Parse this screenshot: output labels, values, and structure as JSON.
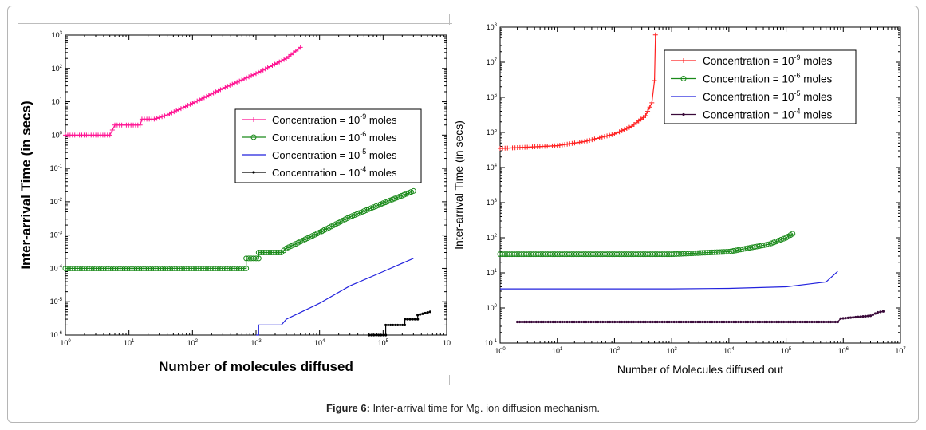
{
  "caption": {
    "label": "Figure 6:",
    "text": "Inter-arrival time for Mg. ion diffusion mechanism."
  },
  "chart_data": [
    {
      "type": "line",
      "xlabel": "Number of molecules diffused",
      "ylabel": "Inter-arrival Time (in secs)",
      "xscale": "log",
      "yscale": "log",
      "xlim": [
        1,
        1000000
      ],
      "ylim": [
        1e-06,
        1000
      ],
      "x_ticks": [
        {
          "base": "10",
          "exp": "0"
        },
        {
          "base": "10",
          "exp": "1"
        },
        {
          "base": "10",
          "exp": "2"
        },
        {
          "base": "10",
          "exp": "3"
        },
        {
          "base": "10",
          "exp": "4"
        },
        {
          "base": "10",
          "exp": "5"
        },
        {
          "base": "10",
          "exp": ""
        }
      ],
      "y_ticks": [
        {
          "base": "10",
          "exp": "-6"
        },
        {
          "base": "10",
          "exp": "-5"
        },
        {
          "base": "10",
          "exp": "-4"
        },
        {
          "base": "10",
          "exp": "-3"
        },
        {
          "base": "10",
          "exp": "-2"
        },
        {
          "base": "10",
          "exp": "-1"
        },
        {
          "base": "10",
          "exp": "0"
        },
        {
          "base": "10",
          "exp": "1"
        },
        {
          "base": "10",
          "exp": "2"
        },
        {
          "base": "10",
          "exp": "3"
        }
      ],
      "legend_position": "right",
      "legend": [
        {
          "prefix": "Concentration = 10",
          "exp": "-9",
          "suffix": "  moles",
          "color": "#ff1493",
          "marker": "plus"
        },
        {
          "prefix": "Concentration = 10",
          "exp": "-6",
          "suffix": "  moles",
          "color": "#1a8a1a",
          "marker": "circle"
        },
        {
          "prefix": "Concentration = 10",
          "exp": "-5",
          "suffix": "  moles",
          "color": "#2222dd",
          "marker": "none"
        },
        {
          "prefix": "Concentration = 10",
          "exp": "-4",
          "suffix": "  moles",
          "color": "#000000",
          "marker": "dot"
        }
      ],
      "series": [
        {
          "name": "Concentration = 10^-9 moles",
          "color": "#ff1493",
          "marker": "plus",
          "points": [
            [
              1,
              1
            ],
            [
              5,
              1
            ],
            [
              6,
              2
            ],
            [
              15,
              2
            ],
            [
              16,
              3
            ],
            [
              25,
              3
            ],
            [
              40,
              4
            ],
            [
              100,
              9
            ],
            [
              300,
              25
            ],
            [
              1000,
              70
            ],
            [
              3000,
              200
            ],
            [
              5000,
              430
            ]
          ]
        },
        {
          "name": "Concentration = 10^-6 moles",
          "color": "#1a8a1a",
          "marker": "circle",
          "points": [
            [
              1,
              0.0001
            ],
            [
              700,
              0.0001
            ],
            [
              700,
              0.0002
            ],
            [
              1100,
              0.0002
            ],
            [
              1100,
              0.0003
            ],
            [
              2500,
              0.0003
            ],
            [
              3000,
              0.0004
            ],
            [
              10000,
              0.0012
            ],
            [
              30000,
              0.0035
            ],
            [
              100000,
              0.009
            ],
            [
              300000,
              0.021
            ]
          ]
        },
        {
          "name": "Concentration = 10^-5 moles",
          "color": "#2222dd",
          "marker": "none",
          "points": [
            [
              1000,
              1e-06
            ],
            [
              1100,
              1e-06
            ],
            [
              1100,
              2e-06
            ],
            [
              2500,
              2e-06
            ],
            [
              3000,
              3e-06
            ],
            [
              10000,
              9e-06
            ],
            [
              30000,
              3e-05
            ],
            [
              100000,
              8e-05
            ],
            [
              300000,
              0.0002
            ]
          ]
        },
        {
          "name": "Concentration = 10^-4 moles",
          "color": "#000000",
          "marker": "dot",
          "points": [
            [
              60000,
              1e-06
            ],
            [
              110000,
              1e-06
            ],
            [
              110000,
              2e-06
            ],
            [
              220000,
              2e-06
            ],
            [
              220000,
              3e-06
            ],
            [
              350000,
              3e-06
            ],
            [
              350000,
              4e-06
            ],
            [
              550000,
              5e-06
            ]
          ]
        }
      ]
    },
    {
      "type": "line",
      "xlabel": "Number of Molecules diffused out",
      "ylabel": "Inter-arrival Time (in secs)",
      "xscale": "log",
      "yscale": "log",
      "xlim": [
        1,
        10000000
      ],
      "ylim": [
        0.1,
        100000000
      ],
      "x_ticks": [
        {
          "base": "10",
          "exp": "0"
        },
        {
          "base": "10",
          "exp": "1"
        },
        {
          "base": "10",
          "exp": "2"
        },
        {
          "base": "10",
          "exp": "3"
        },
        {
          "base": "10",
          "exp": "4"
        },
        {
          "base": "10",
          "exp": "5"
        },
        {
          "base": "10",
          "exp": "6"
        },
        {
          "base": "10",
          "exp": "7"
        }
      ],
      "y_ticks": [
        {
          "base": "10",
          "exp": "-1"
        },
        {
          "base": "10",
          "exp": "0"
        },
        {
          "base": "10",
          "exp": "1"
        },
        {
          "base": "10",
          "exp": "2"
        },
        {
          "base": "10",
          "exp": "3"
        },
        {
          "base": "10",
          "exp": "4"
        },
        {
          "base": "10",
          "exp": "5"
        },
        {
          "base": "10",
          "exp": "6"
        },
        {
          "base": "10",
          "exp": "7"
        },
        {
          "base": "10",
          "exp": "8"
        }
      ],
      "legend_position": "top-right",
      "legend": [
        {
          "prefix": "Concentration = 10",
          "exp": "-9",
          "suffix": "  moles",
          "color": "#ff2020",
          "marker": "plus"
        },
        {
          "prefix": "Concentration = 10",
          "exp": "-6",
          "suffix": "  moles",
          "color": "#1a8a1a",
          "marker": "circle"
        },
        {
          "prefix": "Concentration = 10",
          "exp": "-5",
          "suffix": "  moles",
          "color": "#2222dd",
          "marker": "none"
        },
        {
          "prefix": "Concentration = 10",
          "exp": "-4",
          "suffix": "  moles",
          "color": "#3a0a3a",
          "marker": "dot"
        }
      ],
      "series": [
        {
          "name": "Concentration = 10^-9 moles",
          "color": "#ff2020",
          "marker": "plus",
          "points": [
            [
              1,
              35000
            ],
            [
              3,
              38000
            ],
            [
              10,
              42000
            ],
            [
              30,
              55000
            ],
            [
              100,
              90000
            ],
            [
              200,
              150000
            ],
            [
              350,
              300000
            ],
            [
              450,
              700000
            ],
            [
              500,
              3000000
            ],
            [
              520,
              60000000
            ]
          ]
        },
        {
          "name": "Concentration = 10^-6 moles",
          "color": "#1a8a1a",
          "marker": "circle",
          "points": [
            [
              1,
              34
            ],
            [
              100,
              34
            ],
            [
              1000,
              34
            ],
            [
              10000,
              40
            ],
            [
              50000,
              65
            ],
            [
              100000,
              100
            ],
            [
              130000,
              130
            ]
          ]
        },
        {
          "name": "Concentration = 10^-5 moles",
          "color": "#2222dd",
          "marker": "none",
          "points": [
            [
              1,
              3.5
            ],
            [
              1000,
              3.5
            ],
            [
              10000,
              3.6
            ],
            [
              100000,
              4
            ],
            [
              500000,
              5.5
            ],
            [
              800000,
              11
            ]
          ]
        },
        {
          "name": "Concentration = 10^-4 moles",
          "color": "#3a0a3a",
          "marker": "dot",
          "points": [
            [
              2,
              0.4
            ],
            [
              1000,
              0.4
            ],
            [
              100000,
              0.4
            ],
            [
              800000,
              0.4
            ],
            [
              900000,
              0.5
            ],
            [
              3000000,
              0.6
            ],
            [
              4000000,
              0.75
            ],
            [
              5000000,
              0.8
            ]
          ]
        }
      ]
    }
  ]
}
